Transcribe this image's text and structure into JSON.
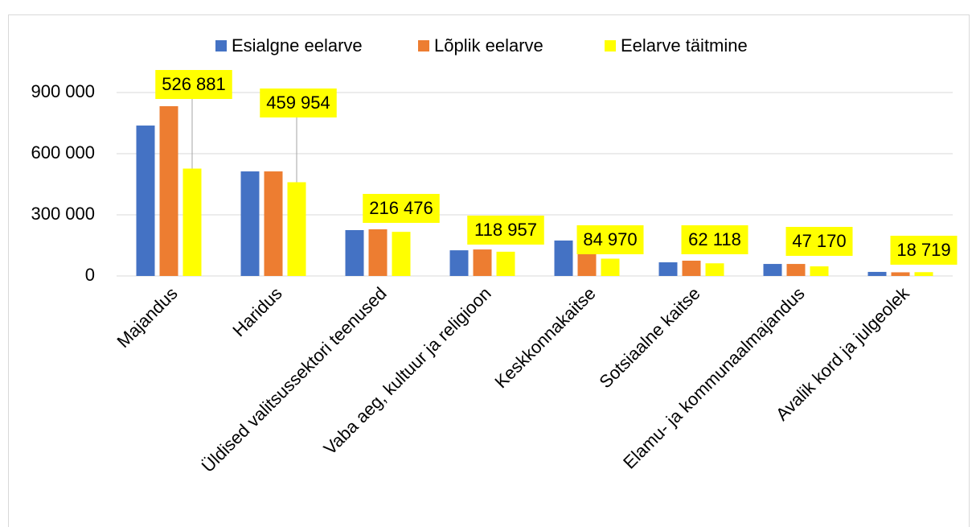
{
  "chart_data": {
    "type": "bar",
    "categories": [
      "Majandus",
      "Haridus",
      "Üldised valitsussektori teenused",
      "Vaba aeg, kultuur ja religioon",
      "Keskkonnakaitse",
      "Sotsiaalne kaitse",
      "Elamu- ja kommunaalmajandus",
      "Avalik kord ja julgeolek"
    ],
    "series": [
      {
        "name": "Esialgne eelarve",
        "color": "#4472c4",
        "values": [
          738000,
          513000,
          225000,
          126000,
          174000,
          67000,
          59000,
          20000
        ]
      },
      {
        "name": "Lõplik eelarve",
        "color": "#ed7d31",
        "values": [
          833000,
          513000,
          229000,
          130000,
          130000,
          75000,
          59000,
          18000
        ]
      },
      {
        "name": "Eelarve täitmine",
        "color": "#ffff00",
        "values": [
          526881,
          459954,
          216476,
          118957,
          84970,
          62118,
          47170,
          18719
        ],
        "value_labels": [
          "526 881",
          "459 954",
          "216 476",
          "118 957",
          "84 970",
          "62 118",
          "47 170",
          "18 719"
        ]
      }
    ],
    "ylim": [
      0,
      900000
    ],
    "yticks": [
      0,
      {
        "value": 300000,
        "label": "300 000"
      },
      {
        "value": 600000,
        "label": "600 000"
      },
      {
        "value": 900000,
        "label": "900 000"
      }
    ],
    "grid": true,
    "legend": "top"
  }
}
